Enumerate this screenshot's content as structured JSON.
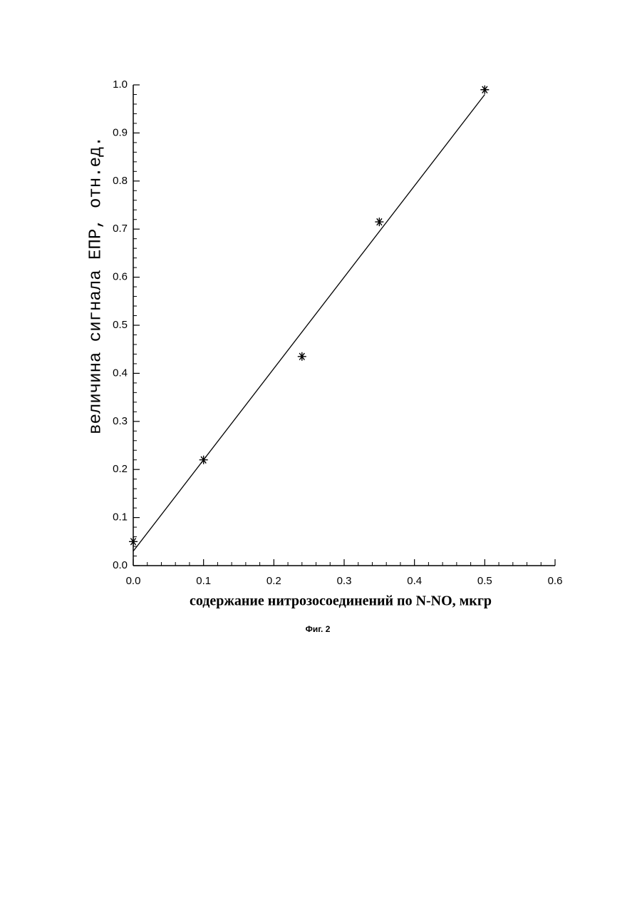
{
  "chart_data": {
    "type": "scatter",
    "xlabel": "содержание нитрозосоединений по  N-NO,  мкгр",
    "ylabel": "величина сигнала ЕПР, отн.ед.",
    "caption": "Фиг. 2",
    "xlim": [
      0,
      0.6
    ],
    "ylim": [
      0,
      1
    ],
    "xticks": [
      {
        "value": 0,
        "label": "0.0"
      },
      0.1,
      0.2,
      0.3,
      0.4,
      0.5,
      0.6
    ],
    "yticks": [
      {
        "value": 0,
        "label": "0.0"
      },
      0.1,
      0.2,
      0.3,
      0.4,
      0.5,
      0.6,
      0.7,
      0.8,
      0.9,
      {
        "value": 1,
        "label": "1.0"
      }
    ],
    "minor_ticks": 5,
    "color": "#000000",
    "points": {
      "x": [
        0,
        0.1,
        0.24,
        0.35,
        0.5
      ],
      "values": [
        0.05,
        0.22,
        0.435,
        0.715,
        0.99
      ]
    },
    "fit_line": {
      "x": [
        0,
        0.5
      ],
      "values": [
        0.03,
        0.98
      ]
    }
  }
}
